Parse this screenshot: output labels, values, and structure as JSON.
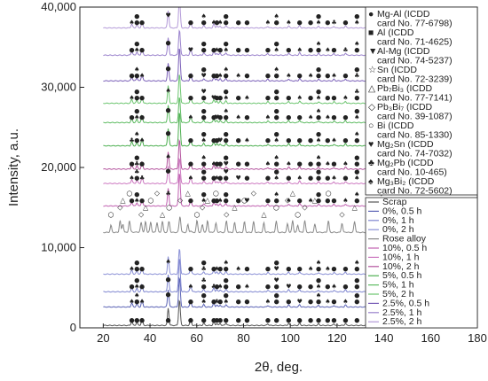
{
  "chart_data": {
    "type": "line",
    "title": "",
    "xlabel": "2θ, deg.",
    "ylabel": "Intensity, a.u.",
    "xlim": [
      10,
      180
    ],
    "ylim": [
      0,
      40000
    ],
    "x_ticks": [
      "20",
      "40",
      "60",
      "80",
      "100",
      "120",
      "140",
      "160",
      "180"
    ],
    "y_ticks": [
      "0",
      "10,000",
      "20,000",
      "30,000",
      "40,000"
    ],
    "grid": false,
    "legend_position": "right",
    "marker_legend": [
      {
        "symbol": "●",
        "lines": [
          "Mg-Al (ICDD",
          "card No. 77-6798)"
        ]
      },
      {
        "symbol": "■",
        "lines": [
          "Al (ICDD",
          "card No. 71-4625)"
        ]
      },
      {
        "symbol": "▼",
        "lines": [
          "Al-Mg (ICDD",
          "card No. 74-5237)"
        ]
      },
      {
        "symbol": "☆",
        "lines": [
          "Sn (ICDD",
          "card No. 72-3239)"
        ]
      },
      {
        "symbol": "△",
        "lines": [
          "Pb₇Bi₃ (ICDD",
          "card No. 77-7141)"
        ]
      },
      {
        "symbol": "◇",
        "lines": [
          "Pb₃Bi₇ (ICDD",
          "card No. 39-1087)"
        ]
      },
      {
        "symbol": "○",
        "lines": [
          "Bi (ICDD",
          "card No. 85-1330)"
        ]
      },
      {
        "symbol": "♥",
        "lines": [
          "Mg₂Sn (ICDD",
          "card No. 74-7032)"
        ]
      },
      {
        "symbol": "♣",
        "lines": [
          "Mg₂Pb (ICDD",
          "card No. 10-465)"
        ]
      },
      {
        "symbol": "♠",
        "lines": [
          "Mg₃Bi₂ (ICDD",
          "card No. 72-5602)"
        ]
      }
    ],
    "series": [
      {
        "name": "Scrap",
        "color": "#555555",
        "baseline": 300,
        "kind": "mg"
      },
      {
        "name": "0%, 0.5 h",
        "color": "#5b63b5",
        "baseline": 2600,
        "kind": "mg"
      },
      {
        "name": "0%, 1 h",
        "color": "#7f86d0",
        "baseline": 4500,
        "kind": "mg"
      },
      {
        "name": "0%, 2 h",
        "color": "#8b91d6",
        "baseline": 6700,
        "kind": "mg"
      },
      {
        "name": "Rose alloy",
        "color": "#888888",
        "baseline": 11900,
        "kind": "rose"
      },
      {
        "name": "10%, 0.5 h",
        "color": "#c060b0",
        "baseline": 15200,
        "kind": "mg"
      },
      {
        "name": "10%, 1 h",
        "color": "#cc77c0",
        "baseline": 18000,
        "kind": "mg"
      },
      {
        "name": "10%, 2 h",
        "color": "#b4549e",
        "baseline": 19800,
        "kind": "mg"
      },
      {
        "name": "5%, 0.5 h",
        "color": "#4caf50",
        "baseline": 22700,
        "kind": "mg"
      },
      {
        "name": "5%, 1 h",
        "color": "#5dbb61",
        "baseline": 25600,
        "kind": "mg"
      },
      {
        "name": "5%, 2 h",
        "color": "#6cc56f",
        "baseline": 28000,
        "kind": "mg"
      },
      {
        "name": "2.5%, 0.5 h",
        "color": "#7a5fb8",
        "baseline": 30800,
        "kind": "mg"
      },
      {
        "name": "2.5%, 1 h",
        "color": "#9a82cc",
        "baseline": 34000,
        "kind": "mg"
      },
      {
        "name": "2.5%, 2 h",
        "color": "#b39ad8",
        "baseline": 37400,
        "kind": "mg"
      }
    ],
    "mg_peaks_2theta": [
      32.2,
      34.4,
      36.6,
      47.8,
      57.4,
      63.0,
      67.3,
      68.6,
      70.0,
      72.5,
      77.8,
      81.5,
      90.4,
      94.1,
      99.3,
      104.0,
      108.7,
      112.1,
      116.0,
      118.7,
      123.6,
      128.5,
      135.0,
      138.6
    ],
    "rose_peaks_2theta": [
      23.3,
      27.2,
      28.4,
      31.2,
      36.2,
      38.1,
      40.3,
      43.0,
      45.3,
      48.2,
      52.9,
      56.2,
      60.1,
      62.4,
      64.6,
      68.2,
      72.7,
      76.2,
      80.4,
      84.3,
      88.7,
      94.0,
      98.8,
      101.0,
      103.2,
      106.2,
      110.5,
      116.3,
      122.1,
      127.5,
      133.4,
      138.9,
      144.2
    ]
  }
}
